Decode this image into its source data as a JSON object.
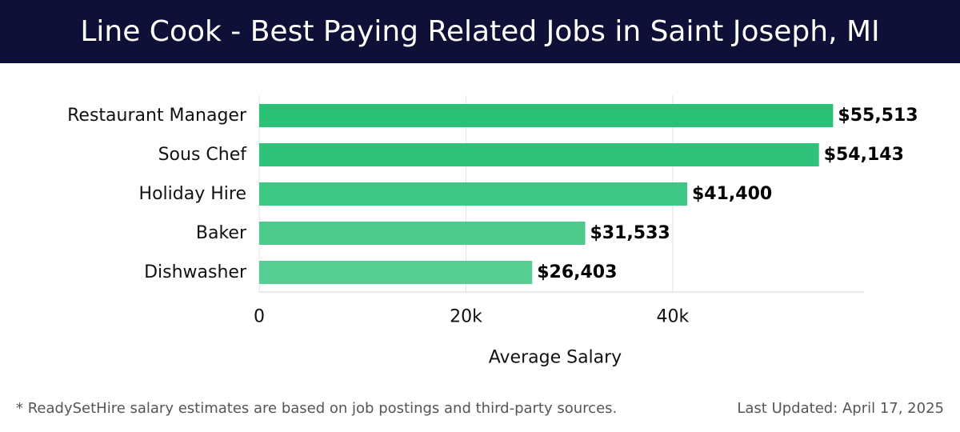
{
  "header": {
    "title": "Line Cook - Best Paying Related Jobs in Saint Joseph, MI"
  },
  "footer": {
    "note": "* ReadySetHire salary estimates are based on job postings and third-party sources.",
    "updated": "Last Updated: April 17, 2025"
  },
  "colors": {
    "header_bg": "#0f1038",
    "bar_colors": [
      "#2ac075",
      "#2fc27a",
      "#3ec784",
      "#4ccb8d",
      "#56cd93"
    ],
    "gridline": "#e2e2e2"
  },
  "chart_data": {
    "type": "bar",
    "orientation": "horizontal",
    "title": "Line Cook - Best Paying Related Jobs in Saint Joseph, MI",
    "categories": [
      "Restaurant Manager",
      "Sous Chef",
      "Holiday Hire",
      "Baker",
      "Dishwasher"
    ],
    "values": [
      55513,
      54143,
      41400,
      31533,
      26403
    ],
    "value_labels": [
      "$55,513",
      "$54,143",
      "$41,400",
      "$31,533",
      "$26,403"
    ],
    "xlabel": "Average Salary",
    "ylabel": "",
    "xlim": [
      0,
      58500
    ],
    "xticks": [
      0,
      20000,
      40000
    ],
    "xtick_labels": [
      "0",
      "20k",
      "40k"
    ],
    "grid": true,
    "legend": "none"
  }
}
